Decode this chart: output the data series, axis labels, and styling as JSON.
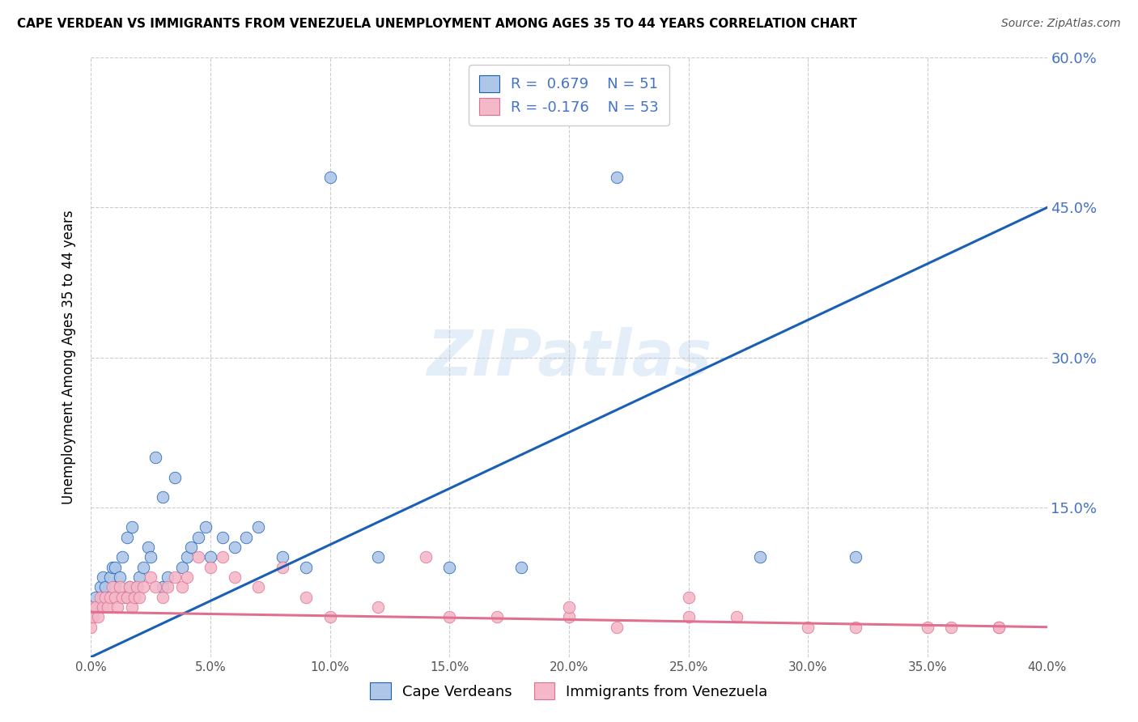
{
  "title": "CAPE VERDEAN VS IMMIGRANTS FROM VENEZUELA UNEMPLOYMENT AMONG AGES 35 TO 44 YEARS CORRELATION CHART",
  "source": "Source: ZipAtlas.com",
  "ylabel": "Unemployment Among Ages 35 to 44 years",
  "xlim": [
    0.0,
    0.4
  ],
  "ylim": [
    0.0,
    0.6
  ],
  "xticks": [
    0.0,
    0.05,
    0.1,
    0.15,
    0.2,
    0.25,
    0.3,
    0.35,
    0.4
  ],
  "yticks": [
    0.0,
    0.15,
    0.3,
    0.45,
    0.6
  ],
  "ytick_labels": [
    "",
    "15.0%",
    "30.0%",
    "45.0%",
    "60.0%"
  ],
  "xtick_labels": [
    "0.0%",
    "5.0%",
    "10.0%",
    "15.0%",
    "20.0%",
    "25.0%",
    "30.0%",
    "35.0%",
    "40.0%"
  ],
  "blue_color": "#aec6e8",
  "pink_color": "#f4b8c8",
  "blue_line_color": "#1a5fb4",
  "pink_line_color": "#e07090",
  "watermark_text": "ZIPatlas",
  "blue_line_x": [
    0.0,
    0.4
  ],
  "blue_line_y": [
    0.0,
    0.45
  ],
  "pink_line_x": [
    0.0,
    0.4
  ],
  "pink_line_y": [
    0.045,
    0.03
  ],
  "blue_scatter_x": [
    0.0,
    0.0,
    0.001,
    0.002,
    0.003,
    0.004,
    0.005,
    0.005,
    0.006,
    0.007,
    0.008,
    0.009,
    0.01,
    0.01,
    0.011,
    0.012,
    0.013,
    0.015,
    0.015,
    0.016,
    0.017,
    0.018,
    0.019,
    0.02,
    0.022,
    0.024,
    0.025,
    0.027,
    0.03,
    0.03,
    0.032,
    0.035,
    0.038,
    0.04,
    0.042,
    0.045,
    0.048,
    0.05,
    0.055,
    0.06,
    0.065,
    0.07,
    0.08,
    0.09,
    0.1,
    0.12,
    0.15,
    0.18,
    0.22,
    0.28,
    0.32
  ],
  "blue_scatter_y": [
    0.04,
    0.05,
    0.05,
    0.06,
    0.05,
    0.07,
    0.06,
    0.08,
    0.07,
    0.06,
    0.08,
    0.09,
    0.07,
    0.09,
    0.06,
    0.08,
    0.1,
    0.06,
    0.12,
    0.07,
    0.13,
    0.06,
    0.07,
    0.08,
    0.09,
    0.11,
    0.1,
    0.2,
    0.07,
    0.16,
    0.08,
    0.18,
    0.09,
    0.1,
    0.11,
    0.12,
    0.13,
    0.1,
    0.12,
    0.11,
    0.12,
    0.13,
    0.1,
    0.09,
    0.48,
    0.1,
    0.09,
    0.09,
    0.48,
    0.1,
    0.1
  ],
  "pink_scatter_x": [
    0.0,
    0.0,
    0.001,
    0.002,
    0.003,
    0.004,
    0.005,
    0.006,
    0.007,
    0.008,
    0.009,
    0.01,
    0.011,
    0.012,
    0.013,
    0.015,
    0.016,
    0.017,
    0.018,
    0.019,
    0.02,
    0.022,
    0.025,
    0.027,
    0.03,
    0.032,
    0.035,
    0.038,
    0.04,
    0.045,
    0.05,
    0.055,
    0.06,
    0.07,
    0.08,
    0.09,
    0.1,
    0.12,
    0.14,
    0.15,
    0.17,
    0.2,
    0.22,
    0.25,
    0.27,
    0.3,
    0.32,
    0.35,
    0.36,
    0.38,
    0.2,
    0.25,
    0.38
  ],
  "pink_scatter_y": [
    0.03,
    0.05,
    0.04,
    0.05,
    0.04,
    0.06,
    0.05,
    0.06,
    0.05,
    0.06,
    0.07,
    0.06,
    0.05,
    0.07,
    0.06,
    0.06,
    0.07,
    0.05,
    0.06,
    0.07,
    0.06,
    0.07,
    0.08,
    0.07,
    0.06,
    0.07,
    0.08,
    0.07,
    0.08,
    0.1,
    0.09,
    0.1,
    0.08,
    0.07,
    0.09,
    0.06,
    0.04,
    0.05,
    0.1,
    0.04,
    0.04,
    0.04,
    0.03,
    0.04,
    0.04,
    0.03,
    0.03,
    0.03,
    0.03,
    0.03,
    0.05,
    0.06,
    0.03
  ]
}
